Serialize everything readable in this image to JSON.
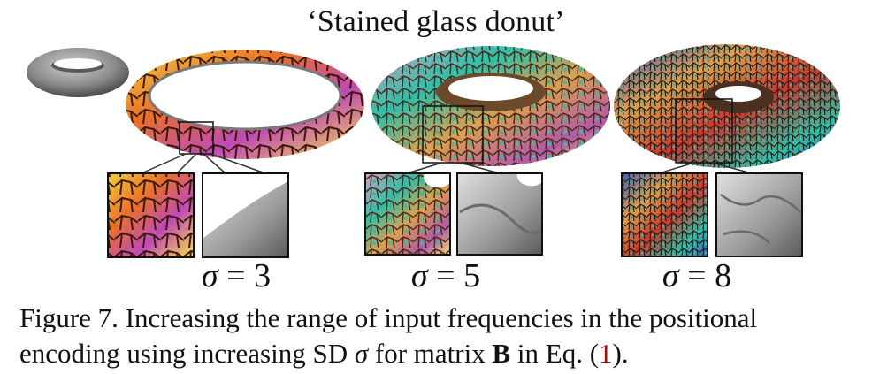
{
  "title": "‘Stained glass donut’",
  "panels": [
    {
      "sigma_symbol": "σ",
      "sigma_eq": "=",
      "sigma_value": "3"
    },
    {
      "sigma_symbol": "σ",
      "sigma_eq": "=",
      "sigma_value": "5"
    },
    {
      "sigma_symbol": "σ",
      "sigma_eq": "=",
      "sigma_value": "8"
    }
  ],
  "caption": {
    "prefix": "Figure 7.",
    "text1": "Increasing the range of input frequencies in the positional encoding using increasing SD",
    "sigma": "σ",
    "text2": "for matrix",
    "matrix": "B",
    "text3": "in Eq. (",
    "ref": "1",
    "text4": ")."
  },
  "colors": {
    "plain_torus": "#8a8a8a",
    "stained_yellow": "#f4e24a",
    "stained_orange": "#e9702a",
    "stained_magenta": "#c04ab8",
    "stained_lines": "#3a1a0a",
    "turquoise": "#2fbfa8",
    "ref_red": "#c00000"
  }
}
